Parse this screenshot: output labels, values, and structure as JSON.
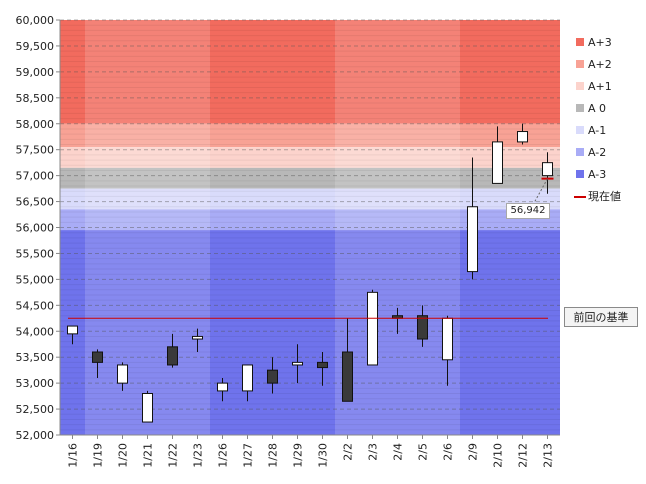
{
  "chart_data": {
    "type": "candlestick",
    "categories": [
      "1/16",
      "1/19",
      "1/20",
      "1/21",
      "1/22",
      "1/23",
      "1/26",
      "1/27",
      "1/28",
      "1/29",
      "1/30",
      "2/2",
      "2/3",
      "2/4",
      "2/5",
      "2/6",
      "2/9",
      "2/10",
      "2/12",
      "2/13"
    ],
    "series": [
      {
        "open": [
          53950,
          53600,
          53000,
          52250,
          53700,
          53850,
          52850,
          52850,
          53250,
          53350,
          53400,
          53600,
          53350,
          54300,
          54300,
          53450,
          55150,
          56850,
          57650,
          57000
        ],
        "high": [
          54100,
          53650,
          53400,
          52850,
          53950,
          54050,
          53100,
          53350,
          53500,
          53750,
          53600,
          54250,
          54800,
          54450,
          54500,
          54300,
          57350,
          57950,
          58000,
          57450
        ],
        "low": [
          53750,
          53100,
          52850,
          52250,
          53300,
          53600,
          52650,
          52650,
          52800,
          53000,
          52950,
          52650,
          53350,
          53950,
          53700,
          52950,
          55000,
          56850,
          57600,
          56650
        ],
        "close": [
          54100,
          53400,
          53350,
          52800,
          53350,
          53900,
          53000,
          53350,
          53000,
          53400,
          53300,
          52650,
          54750,
          54250,
          53850,
          54250,
          56400,
          57650,
          57850,
          57250
        ]
      }
    ],
    "ylim": [
      52000,
      60000
    ],
    "yticks": [
      "52,000",
      "52,500",
      "53,000",
      "53,500",
      "54,000",
      "54,500",
      "55,000",
      "55,500",
      "56,000",
      "56,500",
      "57,000",
      "57,500",
      "58,000",
      "58,500",
      "59,000",
      "59,500",
      "60,000"
    ],
    "bands": [
      {
        "name": "A+3",
        "from": 58000,
        "to": 60000,
        "color": "#f26b5e"
      },
      {
        "name": "A+2",
        "from": 57550,
        "to": 58000,
        "color": "#f8a295"
      },
      {
        "name": "A+1",
        "from": 57150,
        "to": 57550,
        "color": "#fcd3cc"
      },
      {
        "name": "A 0",
        "from": 56750,
        "to": 57150,
        "color": "#b8b8b8"
      },
      {
        "name": "A-1",
        "from": 56350,
        "to": 56750,
        "color": "#d9dbfb"
      },
      {
        "name": "A-2",
        "from": 55950,
        "to": 56350,
        "color": "#a9acf6"
      },
      {
        "name": "A-3",
        "from": 52000,
        "to": 55950,
        "color": "#6f73ec"
      }
    ],
    "current_label": "現在値",
    "current_value": 56942,
    "current_value_label": "56,942",
    "current_color": "#cc0000",
    "previous_label": "前回の基準",
    "previous_value": 54250,
    "previous_color": "#cc0000",
    "grid": true,
    "legend_position": "right"
  }
}
